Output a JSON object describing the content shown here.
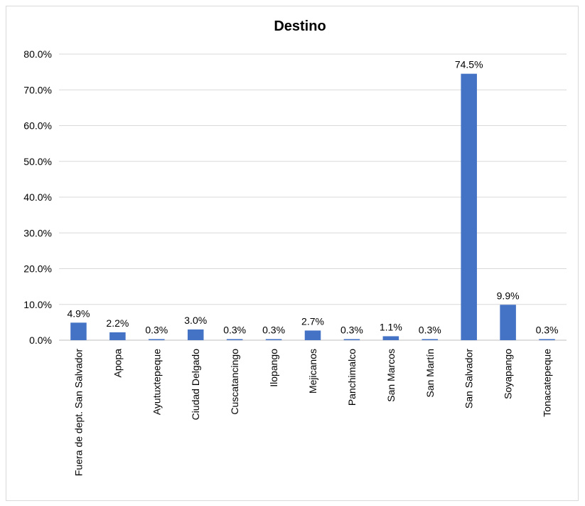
{
  "chart_data": {
    "type": "bar",
    "title": "Destino",
    "xlabel": "",
    "ylabel": "",
    "ylim": [
      0,
      80
    ],
    "yticks": [
      "0.0%",
      "10.0%",
      "20.0%",
      "30.0%",
      "40.0%",
      "50.0%",
      "60.0%",
      "70.0%",
      "80.0%"
    ],
    "grid": true,
    "legend": "none",
    "categories": [
      "Fuera de dept. San Salvador",
      "Apopa",
      "Ayutuxtepeque",
      "Ciudad Delgado",
      "Cuscatancingo",
      "Ilopango",
      "Mejicanos",
      "Panchimalco",
      "San Marcos",
      "San Martín",
      "San Salvador",
      "Soyapango",
      "Tonacatepeque"
    ],
    "values": [
      4.9,
      2.2,
      0.3,
      3.0,
      0.3,
      0.3,
      2.7,
      0.3,
      1.1,
      0.3,
      74.5,
      9.9,
      0.3
    ],
    "data_labels": [
      "4.9%",
      "2.2%",
      "0.3%",
      "3.0%",
      "0.3%",
      "0.3%",
      "2.7%",
      "0.3%",
      "1.1%",
      "0.3%",
      "74.5%",
      "9.9%",
      "0.3%"
    ],
    "bar_color": "#4472C4"
  }
}
